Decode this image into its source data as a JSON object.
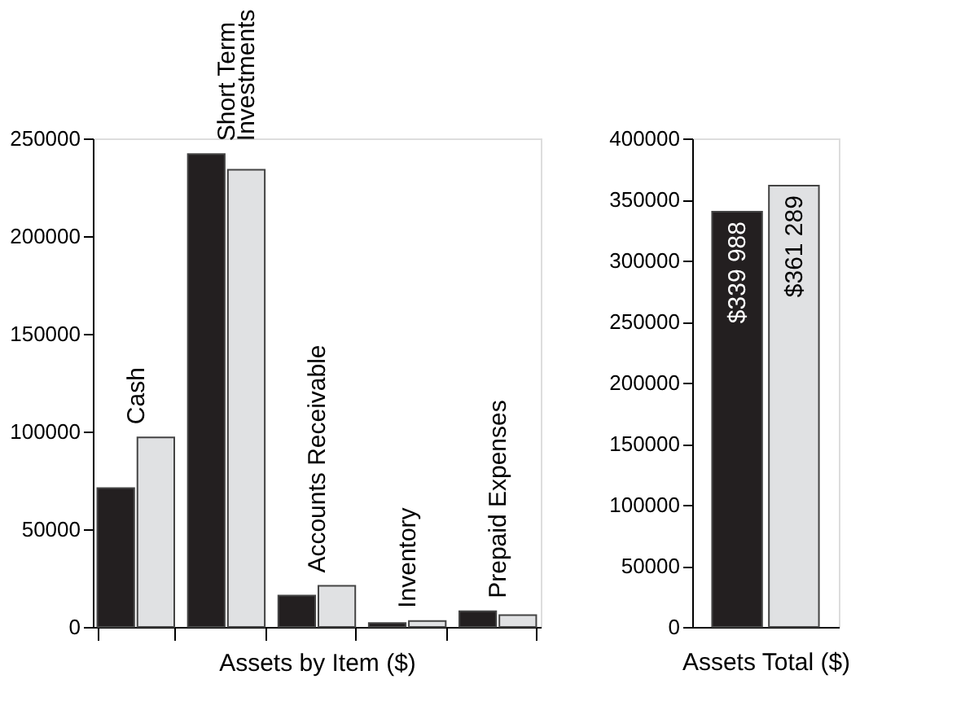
{
  "chart_data": [
    {
      "type": "bar",
      "categories": [
        "Cash",
        "Short Term\nInvestments",
        "Accounts Receivable",
        "Inventory",
        "Prepaid Expenses"
      ],
      "xlabel": "Assets by Item ($)",
      "ylim": [
        0,
        250000
      ],
      "yticks": [
        0,
        50000,
        100000,
        150000,
        200000,
        250000
      ],
      "grid": false,
      "series": [
        {
          "color": "#231f20",
          "values": [
            71000,
            242000,
            16000,
            2000,
            8000
          ]
        },
        {
          "color": "#e0e1e3",
          "values": [
            97000,
            234000,
            21000,
            3000,
            6000
          ]
        }
      ]
    },
    {
      "type": "bar",
      "categories": [
        null,
        null
      ],
      "values": [
        339988,
        361289
      ],
      "colors": [
        "#231f20",
        "#e0e1e3"
      ],
      "value_labels": [
        "$339 988",
        "$361 289"
      ],
      "xlabel": "Assets Total ($)",
      "ylim": [
        0,
        400000
      ],
      "yticks": [
        0,
        50000,
        100000,
        150000,
        200000,
        250000,
        300000,
        350000,
        400000
      ],
      "grid": false
    }
  ]
}
